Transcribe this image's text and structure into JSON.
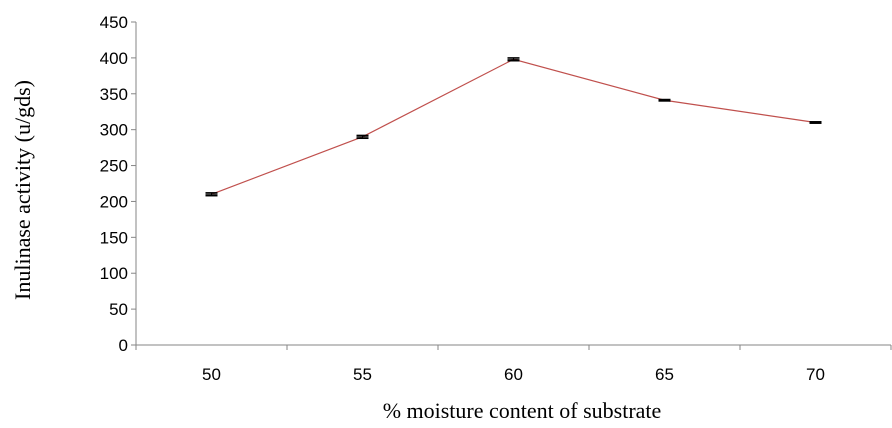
{
  "chart_data": {
    "type": "line",
    "title": "",
    "xlabel": "% moisture content of substrate",
    "ylabel": "Inulinase activity (u/gds)",
    "categories": [
      "50",
      "55",
      "60",
      "65",
      "70"
    ],
    "series": [
      {
        "values": [
          210,
          290,
          398,
          341,
          310
        ],
        "error": [
          2,
          2,
          2,
          1,
          1
        ],
        "color": "#c0504d"
      }
    ],
    "ylim": [
      0,
      450
    ],
    "yticks": [
      0,
      50,
      100,
      150,
      200,
      250,
      300,
      350,
      400,
      450
    ],
    "grid": false,
    "legend": "none"
  }
}
